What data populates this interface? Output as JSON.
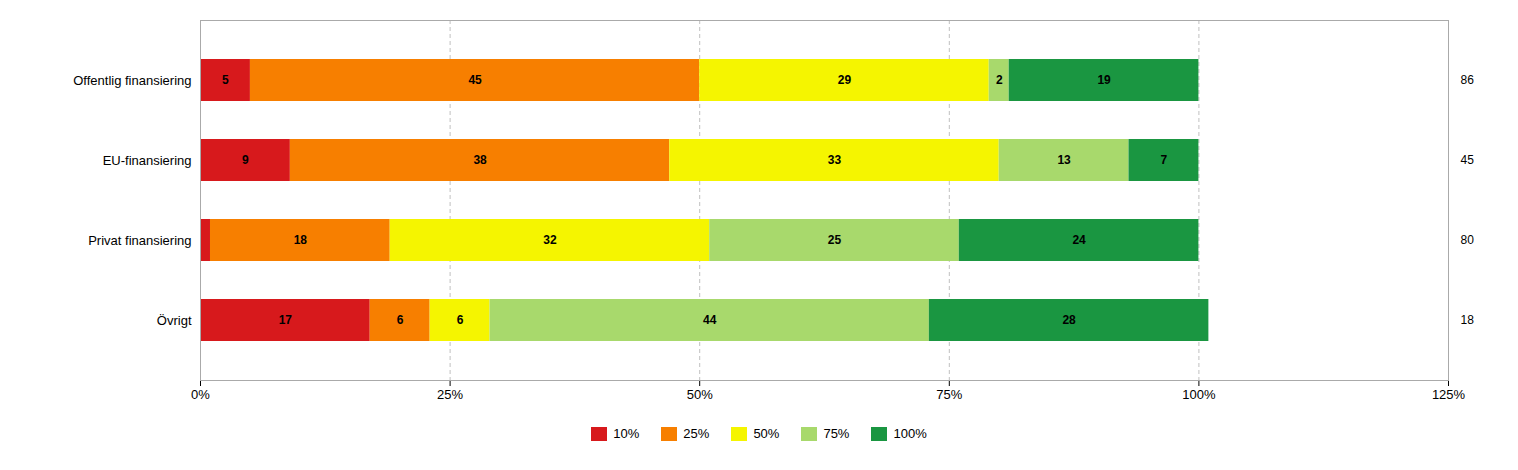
{
  "chart_data": {
    "type": "bar",
    "orientation": "horizontal",
    "stacked": true,
    "categories": [
      "Offentlig finansiering",
      "EU-finansiering",
      "Privat finansiering",
      "Övrigt"
    ],
    "series": [
      {
        "name": "10%",
        "color": "#d7191c",
        "values": [
          5,
          9,
          1,
          17
        ],
        "value_labels": [
          "5",
          "9",
          null,
          "17"
        ]
      },
      {
        "name": "25%",
        "color": "#f77f00",
        "values": [
          45,
          38,
          18,
          6
        ]
      },
      {
        "name": "50%",
        "color": "#f5f500",
        "values": [
          29,
          33,
          32,
          6
        ]
      },
      {
        "name": "75%",
        "color": "#a8d96c",
        "values": [
          2,
          13,
          25,
          44
        ]
      },
      {
        "name": "100%",
        "color": "#1a9641",
        "values": [
          19,
          7,
          24,
          28
        ]
      }
    ],
    "totals": [
      86,
      45,
      80,
      18
    ],
    "xlim": [
      0,
      125
    ],
    "xticks": [
      {
        "value": 0,
        "label": "0%"
      },
      {
        "value": 25,
        "label": "25%"
      },
      {
        "value": 50,
        "label": "50%"
      },
      {
        "value": 75,
        "label": "75%"
      },
      {
        "value": 100,
        "label": "100%"
      },
      {
        "value": 125,
        "label": "125%"
      }
    ],
    "grid": true,
    "legend": "bottom",
    "data_labels": true
  }
}
